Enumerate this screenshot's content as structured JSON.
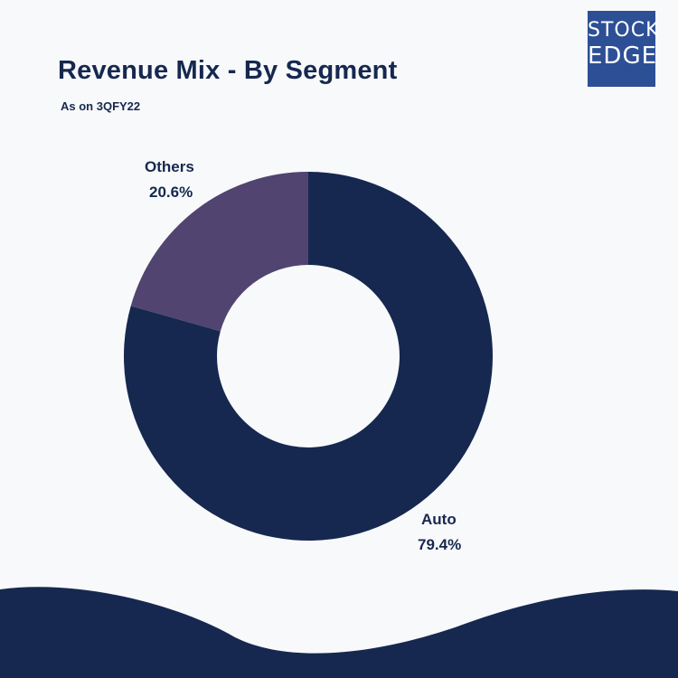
{
  "brand": {
    "logo_line1": "STOCK",
    "logo_line2": "EDGE",
    "logo_color": "#2d4f96"
  },
  "chart_data": {
    "type": "pie",
    "title": "Revenue Mix - By Segment",
    "subtitle": "As on 3QFY22",
    "style": "donut",
    "slices": [
      {
        "label": "Auto",
        "value": 79.4,
        "display": "79.4%",
        "color": "#16284f"
      },
      {
        "label": "Others",
        "value": 20.6,
        "display": "20.6%",
        "color": "#514470"
      }
    ]
  },
  "colors": {
    "background": "#f8f9fb",
    "text": "#16284f",
    "wave": "#16284f"
  }
}
